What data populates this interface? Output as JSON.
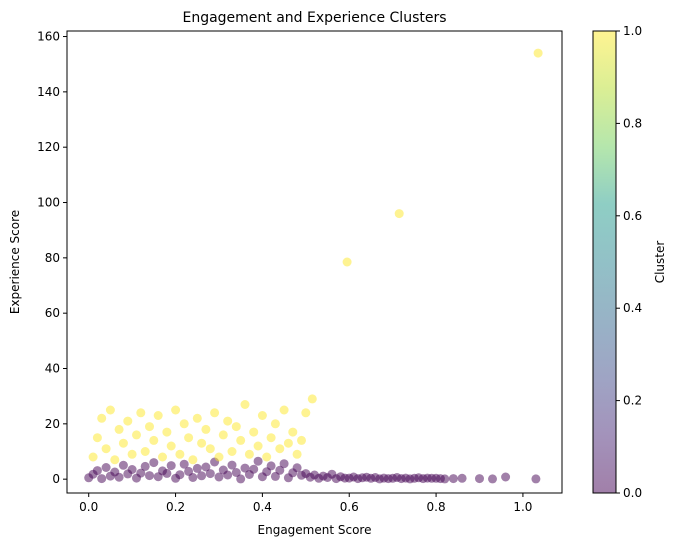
{
  "chart_data": {
    "type": "scatter",
    "title": "Engagement and Experience Clusters",
    "xlabel": "Engagement Score",
    "ylabel": "Experience Score",
    "xlim": [
      -0.05,
      1.09
    ],
    "ylim": [
      -5,
      162
    ],
    "xticks": [
      0.0,
      0.2,
      0.4,
      0.6,
      0.8,
      1.0
    ],
    "xtick_labels": [
      "0.0",
      "0.2",
      "0.4",
      "0.6",
      "0.8",
      "1.0"
    ],
    "yticks": [
      0,
      20,
      40,
      60,
      80,
      100,
      120,
      140,
      160
    ],
    "ytick_labels": [
      "0",
      "20",
      "40",
      "60",
      "80",
      "100",
      "120",
      "140",
      "160"
    ],
    "grid": false,
    "marker_opacity": 0.5,
    "colorbar": {
      "label": "Cluster",
      "range": [
        0.0,
        1.0
      ],
      "ticks": [
        0.0,
        0.2,
        0.4,
        0.6,
        0.8,
        1.0
      ],
      "tick_labels": [
        "0.0",
        "0.2",
        "0.4",
        "0.6",
        "0.8",
        "1.0"
      ],
      "colormap": "viridis",
      "stops": [
        "#440154",
        "#482777",
        "#3f4a8a",
        "#31678e",
        "#26838f",
        "#1f9d8a",
        "#6cce5a",
        "#b6de2b",
        "#fee825"
      ]
    },
    "series": [
      {
        "cluster": 0,
        "color": "#440154",
        "points": [
          [
            0.0,
            0.5
          ],
          [
            0.01,
            1.8
          ],
          [
            0.02,
            3.1
          ],
          [
            0.03,
            0.2
          ],
          [
            0.04,
            4.2
          ],
          [
            0.05,
            1.1
          ],
          [
            0.06,
            2.6
          ],
          [
            0.07,
            0.7
          ],
          [
            0.08,
            5.0
          ],
          [
            0.09,
            1.9
          ],
          [
            0.1,
            3.5
          ],
          [
            0.11,
            0.4
          ],
          [
            0.12,
            2.2
          ],
          [
            0.13,
            4.6
          ],
          [
            0.14,
            1.3
          ],
          [
            0.15,
            6.0
          ],
          [
            0.16,
            0.9
          ],
          [
            0.17,
            3.0
          ],
          [
            0.18,
            2.1
          ],
          [
            0.19,
            4.9
          ],
          [
            0.2,
            0.3
          ],
          [
            0.21,
            1.6
          ],
          [
            0.22,
            5.4
          ],
          [
            0.23,
            2.8
          ],
          [
            0.24,
            0.6
          ],
          [
            0.25,
            3.9
          ],
          [
            0.26,
            1.2
          ],
          [
            0.27,
            4.4
          ],
          [
            0.28,
            2.0
          ],
          [
            0.29,
            6.2
          ],
          [
            0.3,
            0.8
          ],
          [
            0.31,
            3.3
          ],
          [
            0.32,
            1.5
          ],
          [
            0.33,
            5.1
          ],
          [
            0.34,
            2.4
          ],
          [
            0.35,
            0.1
          ],
          [
            0.36,
            4.0
          ],
          [
            0.37,
            1.7
          ],
          [
            0.38,
            3.6
          ],
          [
            0.39,
            6.5
          ],
          [
            0.4,
            0.9
          ],
          [
            0.41,
            2.7
          ],
          [
            0.42,
            4.8
          ],
          [
            0.43,
            1.0
          ],
          [
            0.44,
            3.2
          ],
          [
            0.45,
            5.6
          ],
          [
            0.46,
            0.5
          ],
          [
            0.47,
            2.3
          ],
          [
            0.48,
            4.1
          ],
          [
            0.49,
            1.4
          ],
          [
            0.5,
            2.0
          ],
          [
            0.51,
            0.7
          ],
          [
            0.52,
            1.5
          ],
          [
            0.53,
            0.3
          ],
          [
            0.54,
            1.1
          ],
          [
            0.55,
            0.6
          ],
          [
            0.56,
            1.8
          ],
          [
            0.57,
            0.2
          ],
          [
            0.58,
            0.9
          ],
          [
            0.59,
            0.4
          ],
          [
            0.6,
            0.4
          ],
          [
            0.61,
            0.8
          ],
          [
            0.62,
            0.2
          ],
          [
            0.63,
            0.5
          ],
          [
            0.64,
            0.7
          ],
          [
            0.65,
            0.3
          ],
          [
            0.66,
            0.6
          ],
          [
            0.67,
            0.1
          ],
          [
            0.68,
            0.4
          ],
          [
            0.69,
            0.2
          ],
          [
            0.7,
            0.3
          ],
          [
            0.71,
            0.6
          ],
          [
            0.72,
            0.2
          ],
          [
            0.73,
            0.4
          ],
          [
            0.74,
            0.1
          ],
          [
            0.75,
            0.3
          ],
          [
            0.76,
            0.5
          ],
          [
            0.77,
            0.2
          ],
          [
            0.78,
            0.4
          ],
          [
            0.79,
            0.3
          ],
          [
            0.8,
            0.3
          ],
          [
            0.81,
            0.2
          ],
          [
            0.82,
            0.1
          ],
          [
            0.84,
            0.2
          ],
          [
            0.86,
            0.3
          ],
          [
            0.9,
            0.2
          ],
          [
            0.93,
            0.1
          ],
          [
            0.96,
            0.8
          ],
          [
            1.03,
            0.1
          ]
        ]
      },
      {
        "cluster": 1,
        "color": "#fde725",
        "points": [
          [
            0.01,
            8
          ],
          [
            0.02,
            15
          ],
          [
            0.03,
            22
          ],
          [
            0.04,
            11
          ],
          [
            0.05,
            25
          ],
          [
            0.06,
            7
          ],
          [
            0.07,
            18
          ],
          [
            0.08,
            13
          ],
          [
            0.09,
            21
          ],
          [
            0.1,
            9
          ],
          [
            0.11,
            16
          ],
          [
            0.12,
            24
          ],
          [
            0.13,
            10
          ],
          [
            0.14,
            19
          ],
          [
            0.15,
            14
          ],
          [
            0.16,
            23
          ],
          [
            0.17,
            8
          ],
          [
            0.18,
            17
          ],
          [
            0.19,
            12
          ],
          [
            0.2,
            25
          ],
          [
            0.21,
            9
          ],
          [
            0.22,
            20
          ],
          [
            0.23,
            15
          ],
          [
            0.24,
            7
          ],
          [
            0.25,
            22
          ],
          [
            0.26,
            13
          ],
          [
            0.27,
            18
          ],
          [
            0.28,
            11
          ],
          [
            0.29,
            24
          ],
          [
            0.3,
            8
          ],
          [
            0.31,
            16
          ],
          [
            0.32,
            21
          ],
          [
            0.33,
            10
          ],
          [
            0.34,
            19
          ],
          [
            0.35,
            14
          ],
          [
            0.36,
            27
          ],
          [
            0.37,
            9
          ],
          [
            0.38,
            17
          ],
          [
            0.39,
            12
          ],
          [
            0.4,
            23
          ],
          [
            0.41,
            8
          ],
          [
            0.42,
            15
          ],
          [
            0.43,
            20
          ],
          [
            0.44,
            11
          ],
          [
            0.45,
            25
          ],
          [
            0.46,
            13
          ],
          [
            0.47,
            17
          ],
          [
            0.48,
            9
          ],
          [
            0.49,
            14
          ],
          [
            0.5,
            24
          ],
          [
            0.515,
            29
          ],
          [
            0.595,
            78.5
          ],
          [
            0.715,
            96
          ],
          [
            1.035,
            154
          ]
        ]
      }
    ]
  }
}
